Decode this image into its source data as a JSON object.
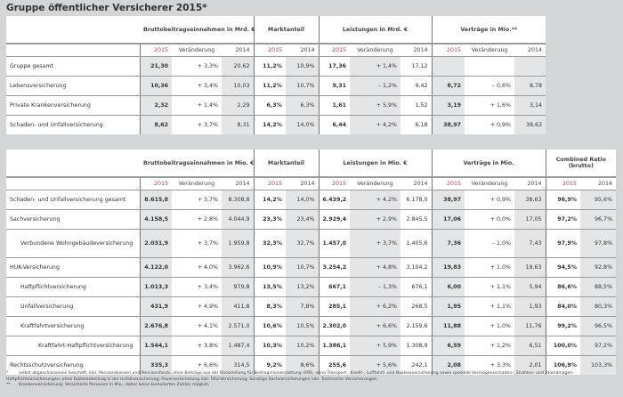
{
  "title": "Gruppe öffentlicher Versicherer 2015*",
  "table1": {
    "groups": [
      "Bruttobeitragseinnahmen in Mrd. €",
      "Marktanteil",
      "Leistungen in Mrd. €",
      "Verträge in Mio.**"
    ],
    "sub": [
      "2015",
      "Veränderung",
      "2014",
      "2015",
      "2014",
      "2015",
      "Veränderung",
      "2014",
      "2015",
      "Veränderung",
      "2014"
    ],
    "rows": [
      {
        "label": "Gruppe gesamt",
        "v": [
          "21,30",
          "+ 3,3%",
          "20,62",
          "11,2%",
          "10,9%",
          "17,36",
          "+ 1,4%",
          "17,12",
          "",
          "",
          ""
        ]
      },
      {
        "label": "Lebensversicherung",
        "v": [
          "10,36",
          "+ 3,4%",
          "10,03",
          "11,2%",
          "10,7%",
          "9,31",
          "– 1,2%",
          "9,42",
          "8,72",
          "– 0,6%",
          "8,78"
        ]
      },
      {
        "label": "Private Krankenversicherung",
        "v": [
          "2,32",
          "+ 1,4%",
          "2,29",
          "6,3%",
          "6,3%",
          "1,61",
          "+ 5,9%",
          "1,52",
          "3,19",
          "+ 1,6%",
          "3,14"
        ]
      },
      {
        "label": "Schaden- und Unfallversicherung",
        "v": [
          "8,62",
          "+ 3,7%",
          "8,31",
          "14,2%",
          "14,0%",
          "6,44",
          "+ 4,2%",
          "6,18",
          "38,97",
          "+ 0,9%",
          "38,63"
        ]
      }
    ]
  },
  "table2": {
    "groups": [
      "Bruttobeitragseinnahmen in Mio. €",
      "Marktanteil",
      "Leistungen in Mio. €",
      "Verträge in Mio.",
      "Combined Ratio (brutto)"
    ],
    "sub": [
      "2015",
      "Veränderung",
      "2014",
      "2015",
      "2014",
      "2015",
      "Veränderung",
      "2014",
      "2015",
      "Veränderung",
      "2014",
      "2015",
      "2014"
    ],
    "rows": [
      {
        "label": "Schaden- und Unfallversicherung gesamt",
        "indent": 0,
        "v": [
          "8.615,8",
          "+ 3,7%",
          "8.308,8",
          "14,2%",
          "14,0%",
          "6.439,2",
          "+ 4,2%",
          "6.178,0",
          "38,97",
          "+ 0,9%",
          "38,63",
          "96,9%",
          "95,6%"
        ]
      },
      {
        "label": "Sachversicherung",
        "indent": 0,
        "v": [
          "4.158,5",
          "+ 2,8%",
          "4.044,9",
          "23,3%",
          "23,4%",
          "2.929,4",
          "+ 2,9%",
          "2.845,5",
          "17,06",
          "+ 0,0%",
          "17,05",
          "97,2%",
          "96,7%"
        ]
      },
      {
        "label": "Verbundene Wohngebäudeversicherung",
        "indent": 1,
        "v": [
          "2.031,9",
          "+ 3,7%",
          "1.959,8",
          "32,3%",
          "32,7%",
          "1.457,0",
          "+ 3,7%",
          "1.405,6",
          "7,36",
          "– 1,0%",
          "7,43",
          "97,9%",
          "97,8%"
        ]
      },
      {
        "label": "HUK-Versicherung",
        "indent": 0,
        "v": [
          "4.122,0",
          "+ 4,0%",
          "3.962,6",
          "10,9%",
          "10,7%",
          "3.254,2",
          "+ 4,8%",
          "3.104,2",
          "19,83",
          "+ 1,0%",
          "19,63",
          "94,5%",
          "92,8%"
        ]
      },
      {
        "label": "Haftpflichtversicherung",
        "indent": 1,
        "v": [
          "1.013,3",
          "+ 3,4%",
          "979,8",
          "13,5%",
          "13,2%",
          "667,1",
          "– 1,3%",
          "676,1",
          "6,00",
          "+ 1,1%",
          "5,94",
          "86,6%",
          "88,5%"
        ]
      },
      {
        "label": "Unfallversicherung",
        "indent": 1,
        "v": [
          "431,9",
          "+ 4,9%",
          "411,8",
          "8,3%",
          "7,8%",
          "285,1",
          "+ 6,2%",
          "268,5",
          "1,95",
          "+ 1,1%",
          "1,93",
          "84,0%",
          "80,3%"
        ]
      },
      {
        "label": "Kraftfahrtversicherung",
        "indent": 1,
        "v": [
          "2.676,8",
          "+ 4,1%",
          "2.571,0",
          "10,6%",
          "10,5%",
          "2.302,0",
          "+ 6,6%",
          "2.159,6",
          "11,88",
          "+ 1,0%",
          "11,76",
          "99,2%",
          "96,5%"
        ]
      },
      {
        "label": "Kraftfahrt-Haftpflichtversicherung",
        "indent": 2,
        "v": [
          "1.544,1",
          "+ 3,8%",
          "1.487,4",
          "10,3%",
          "10,2%",
          "1.386,1",
          "+ 5,9%",
          "1.308,9",
          "6,59",
          "+ 1,2%",
          "6,51",
          "100,0%",
          "97,2%"
        ]
      },
      {
        "label": "Rechtsschutzversicherung",
        "indent": 0,
        "v": [
          "335,3",
          "+ 6,6%",
          "314,5",
          "9,2%",
          "8,6%",
          "255,6",
          "+ 5,6%",
          "242,1",
          "2,08",
          "+ 3,3%",
          "2,01",
          "106,9%",
          "103,3%"
        ]
      }
    ]
  },
  "footnotes": [
    {
      "mark": "*",
      "text": "selbst abgeschlossenes Geschäft, inkl. Pensionskassen und Pensionsfonds, ohne Beiträge aus der Rückstellung für Beitragsrückerstattung (RfB), ohne Transport-, Kredit-, Luftfahrt- und Nuklearversicherung sowie spezielle Vermögensschaden-, Strahlen- und Atomanlagen-Haftpflichtversicherungen; ohne Faktorenbeitrag in der Unfallversicherung; Feuerversicherung inkl. FBU-Versicherung; Sonstige Sachversicherungen inkl. Technische Versicherungen."
    },
    {
      "mark": "**",
      "text": "Krankenversicherung: Versicherte Personen in Mio., daher keine kumulierten Zahlen möglich."
    }
  ],
  "colors": {
    "background": "#d4d5d7",
    "shaded_column": "#e4e5e7",
    "year_2015": "#c0324a"
  }
}
